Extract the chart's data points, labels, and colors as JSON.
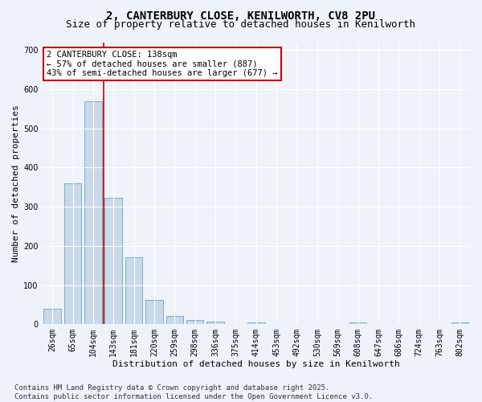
{
  "title_line1": "2, CANTERBURY CLOSE, KENILWORTH, CV8 2PU",
  "title_line2": "Size of property relative to detached houses in Kenilworth",
  "xlabel": "Distribution of detached houses by size in Kenilworth",
  "ylabel": "Number of detached properties",
  "bar_color": "#c9d9e8",
  "bar_edge_color": "#7aaccc",
  "bg_color": "#eef3fa",
  "grid_color": "#ffffff",
  "categories": [
    "26sqm",
    "65sqm",
    "104sqm",
    "143sqm",
    "181sqm",
    "220sqm",
    "259sqm",
    "298sqm",
    "336sqm",
    "375sqm",
    "414sqm",
    "453sqm",
    "492sqm",
    "530sqm",
    "569sqm",
    "608sqm",
    "647sqm",
    "686sqm",
    "724sqm",
    "763sqm",
    "802sqm"
  ],
  "values": [
    40,
    360,
    570,
    323,
    170,
    62,
    22,
    11,
    7,
    0,
    5,
    0,
    0,
    0,
    0,
    5,
    0,
    0,
    0,
    0,
    5
  ],
  "ylim": [
    0,
    720
  ],
  "yticks": [
    0,
    100,
    200,
    300,
    400,
    500,
    600,
    700
  ],
  "vline_x_idx": 2.5,
  "vline_color": "#cc0000",
  "annotation_text": "2 CANTERBURY CLOSE: 138sqm\n← 57% of detached houses are smaller (887)\n43% of semi-detached houses are larger (677) →",
  "annotation_box_color": "#ffffff",
  "annotation_box_edge": "#cc0000",
  "footer_text": "Contains HM Land Registry data © Crown copyright and database right 2025.\nContains public sector information licensed under the Open Government Licence v3.0.",
  "title_fontsize": 10,
  "subtitle_fontsize": 9,
  "axis_label_fontsize": 8,
  "tick_fontsize": 7,
  "annotation_fontsize": 7.5,
  "footer_fontsize": 6.5
}
